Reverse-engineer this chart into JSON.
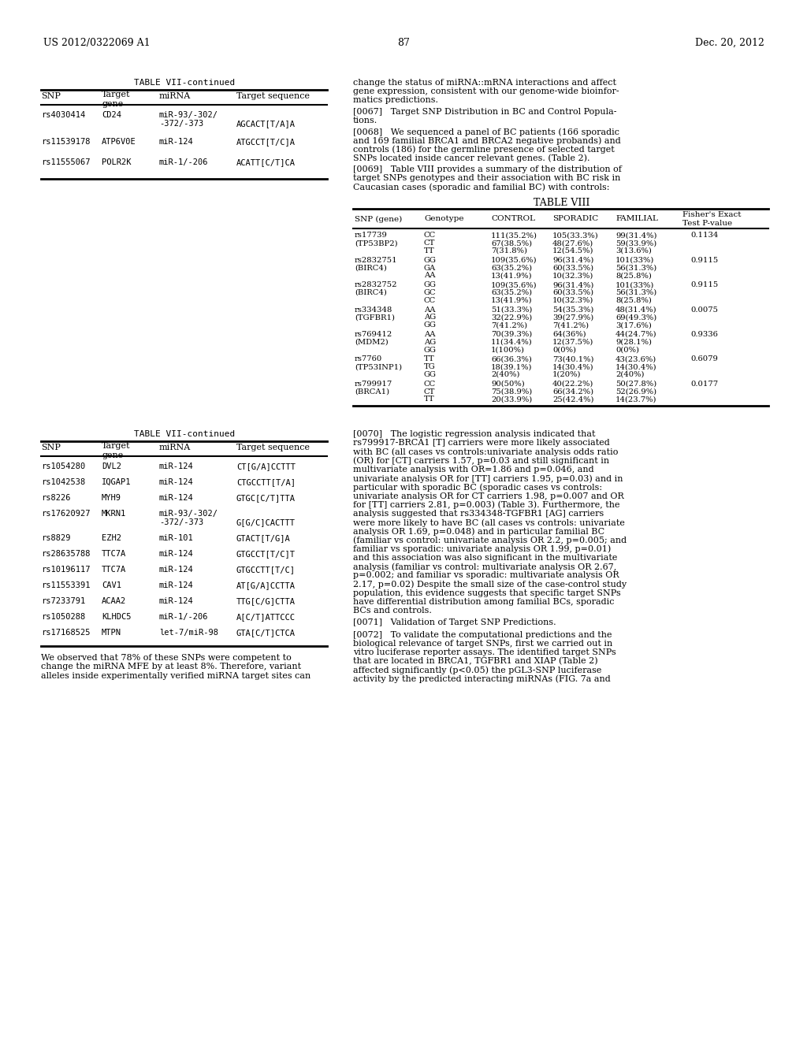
{
  "page_number": "87",
  "header_left": "US 2012/0322069 A1",
  "header_right": "Dec. 20, 2012",
  "bg_color": "#ffffff",
  "text_color": "#000000",
  "table7_top_title": "TABLE VII-continued",
  "table7_top_rows": [
    [
      "rs4030414",
      "CD24",
      "miR-93/-302/",
      "-372/-373",
      "AGCACT[T/A]A"
    ],
    [
      "rs11539178",
      "ATP6V0E",
      "miR-124",
      "",
      "ATGCCT[T/C]A"
    ],
    [
      "rs11555067",
      "POLR2K",
      "miR-1/-206",
      "",
      "ACATT[C/T]CA"
    ]
  ],
  "table8_title": "TABLE VIII",
  "table8_rows": [
    [
      "rs17739",
      "(TP53BP2)",
      "CC",
      "CT",
      "TT",
      "111(35.2%)",
      "67(38.5%)",
      "7(31.8%)",
      "105(33.3%)",
      "48(27.6%)",
      "12(54.5%)",
      "99(31.4%)",
      "59(33.9%)",
      "3(13.6%)",
      "0.1134"
    ],
    [
      "rs2832751",
      "(BIRC4)",
      "GG",
      "GA",
      "AA",
      "109(35.6%)",
      "63(35.2%)",
      "13(41.9%)",
      "96(31.4%)",
      "60(33.5%)",
      "10(32.3%)",
      "101(33%)",
      "56(31.3%)",
      "8(25.8%)",
      "0.9115"
    ],
    [
      "rs2832752",
      "(BIRC4)",
      "GG",
      "GC",
      "CC",
      "109(35.6%)",
      "63(35.2%)",
      "13(41.9%)",
      "96(31.4%)",
      "60(33.5%)",
      "10(32.3%)",
      "101(33%)",
      "56(31.3%)",
      "8(25.8%)",
      "0.9115"
    ],
    [
      "rs334348",
      "(TGFBR1)",
      "AA",
      "AG",
      "GG",
      "51(33.3%)",
      "32(22.9%)",
      "7(41.2%)",
      "54(35.3%)",
      "39(27.9%)",
      "7(41.2%)",
      "48(31.4%)",
      "69(49.3%)",
      "3(17.6%)",
      "0.0075"
    ],
    [
      "rs769412",
      "(MDM2)",
      "AA",
      "AG",
      "GG",
      "70(39.3%)",
      "11(34.4%)",
      "1(100%)",
      "64(36%)",
      "12(37.5%)",
      "0(0%)",
      "44(24.7%)",
      "9(28.1%)",
      "0(0%)",
      "0.9336"
    ],
    [
      "rs7760",
      "(TP53INP1)",
      "TT",
      "TG",
      "GG",
      "66(36.3%)",
      "18(39.1%)",
      "2(40%)",
      "73(40.1%)",
      "14(30.4%)",
      "1(20%)",
      "43(23.6%)",
      "14(30.4%)",
      "2(40%)",
      "0.6079"
    ],
    [
      "rs799917",
      "(BRCA1)",
      "CC",
      "CT",
      "TT",
      "90(50%)",
      "75(38.9%)",
      "20(33.9%)",
      "40(22.2%)",
      "66(34.2%)",
      "25(42.4%)",
      "50(27.8%)",
      "52(26.9%)",
      "14(23.7%)",
      "0.0177"
    ]
  ],
  "table7_bot_title": "TABLE VII-continued",
  "table7_bot_rows": [
    [
      "rs1054280",
      "DVL2",
      "miR-124",
      "",
      "CT[G/A]CCTTT"
    ],
    [
      "rs1042538",
      "IQGAP1",
      "miR-124",
      "",
      "CTGCCTT[T/A]"
    ],
    [
      "rs8226",
      "MYH9",
      "miR-124",
      "",
      "GTGC[C/T]TTA"
    ],
    [
      "rs17620927",
      "MKRN1",
      "miR-93/-302/",
      "-372/-373",
      "G[G/C]CACTTT"
    ],
    [
      "rs8829",
      "EZH2",
      "miR-101",
      "",
      "GTACT[T/G]A"
    ],
    [
      "rs28635788",
      "TTC7A",
      "miR-124",
      "",
      "GTGCCT[T/C]T"
    ],
    [
      "rs10196117",
      "TTC7A",
      "miR-124",
      "",
      "GTGCCTT[T/C]"
    ],
    [
      "rs11553391",
      "CAV1",
      "miR-124",
      "",
      "AT[G/A]CCTTA"
    ],
    [
      "rs7233791",
      "ACAA2",
      "miR-124",
      "",
      "TTG[C/G]CTTA"
    ],
    [
      "rs1050288",
      "KLHDC5",
      "miR-1/-206",
      "",
      "A[C/T]ATTCCC"
    ],
    [
      "rs17168525",
      "MTPN",
      "let-7/miR-98",
      "",
      "GTA[C/T]CTCA"
    ]
  ],
  "prefix_lines": [
    "change the status of miRNA::mRNA interactions and affect",
    "gene expression, consistent with our genome-wide bioinfor-",
    "matics predictions."
  ],
  "para_0067_lines": [
    "[0067]   Target SNP Distribution in BC and Control Popula-",
    "tions."
  ],
  "para_0068_lines": [
    "[0068]   We sequenced a panel of BC patients (166 sporadic",
    "and 169 familial BRCA1 and BRCA2 negative probands) and",
    "controls (186) for the germline presence of selected target",
    "SNPs located inside cancer relevant genes. (Table 2)."
  ],
  "para_0069_lines": [
    "[0069]   Table VIII provides a summary of the distribution of",
    "target SNPs genotypes and their association with BC risk in",
    "Caucasian cases (sporadic and familial BC) with controls:"
  ],
  "para_0070_lines": [
    "[0070]   The logistic regression analysis indicated that",
    "rs799917-BRCA1 [T] carriers were more likely associated",
    "with BC (all cases vs controls:univariate analysis odds ratio",
    "(OR) for [CT] carriers 1.57, p=0.03 and still significant in",
    "multivariate analysis with OR=1.86 and p=0.046, and",
    "univariate analysis OR for [TT] carriers 1.95, p=0.03) and in",
    "particular with sporadic BC (sporadic cases vs controls:",
    "univariate analysis OR for CT carriers 1.98, p=0.007 and OR",
    "for [TT] carriers 2.81, p=0.003) (Table 3). Furthermore, the",
    "analysis suggested that rs334348-TGFBR1 [AG] carriers",
    "were more likely to have BC (all cases vs controls: univariate",
    "analysis OR 1.69, p=0.048) and in particular familial BC",
    "(familiar vs control: univariate analysis OR 2.2, p=0.005; and",
    "familiar vs sporadic: univariate analysis OR 1.99, p=0.01)",
    "and this association was also significant in the multivariate",
    "analysis (familiar vs control: multivariate analysis OR 2.67,",
    "p=0.002; and familiar vs sporadic: multivariate analysis OR",
    "2.17, p=0.02) Despite the small size of the case-control study",
    "population, this evidence suggests that specific target SNPs",
    "have differential distribution among familial BCs, sporadic",
    "BCs and controls."
  ],
  "para_0071_lines": [
    "[0071]   Validation of Target SNP Predictions."
  ],
  "para_0072_lines": [
    "[0072]   To validate the computational predictions and the",
    "biological relevance of target SNPs, first we carried out in",
    "vitro luciferase reporter assays. The identified target SNPs",
    "that are located in BRCA1, TGFBR1 and XIAP (Table 2)",
    "affected significantly (p<0.05) the pGL3-SNP luciferase",
    "activity by the predicted interacting miRNAs (FIG. 7a and"
  ],
  "note_lines": [
    "We observed that 78% of these SNPs were competent to",
    "change the miRNA MFE by at least 8%. Therefore, variant",
    "alleles inside experimentally verified miRNA target sites can"
  ]
}
